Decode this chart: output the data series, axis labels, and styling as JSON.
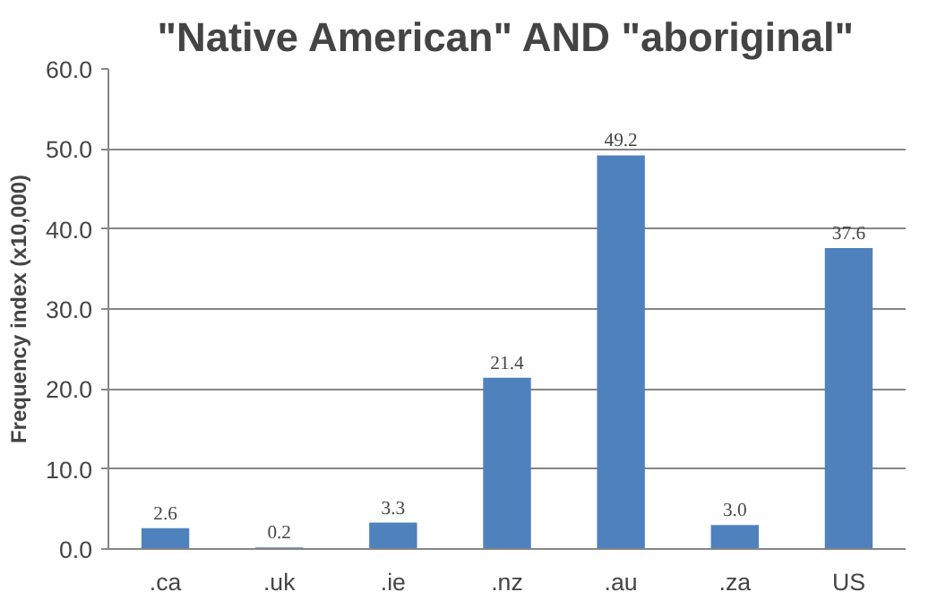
{
  "chart_data": {
    "type": "bar",
    "title": "\"Native American\" AND \"aboriginal\"",
    "ylabel": "Frequency index (x10,000)",
    "categories": [
      ".ca",
      ".uk",
      ".ie",
      ".nz",
      ".au",
      ".za",
      "US"
    ],
    "values": [
      2.6,
      0.2,
      3.3,
      21.4,
      49.2,
      3.0,
      37.6
    ],
    "color": "#4f81bd",
    "value_labels": [
      "2.6",
      "0.2",
      "3.3",
      "21.4",
      "49.2",
      "3.0",
      "37.6"
    ],
    "ylim": [
      0,
      60
    ],
    "yticks": [
      {
        "value": 0,
        "label": "0.0"
      },
      {
        "value": 10,
        "label": "10.0"
      },
      {
        "value": 20,
        "label": "20.0"
      },
      {
        "value": 30,
        "label": "30.0"
      },
      {
        "value": 40,
        "label": "40.0"
      },
      {
        "value": 50,
        "label": "50.0"
      },
      {
        "value": 60,
        "label": "60.0"
      }
    ],
    "grid": "y"
  }
}
